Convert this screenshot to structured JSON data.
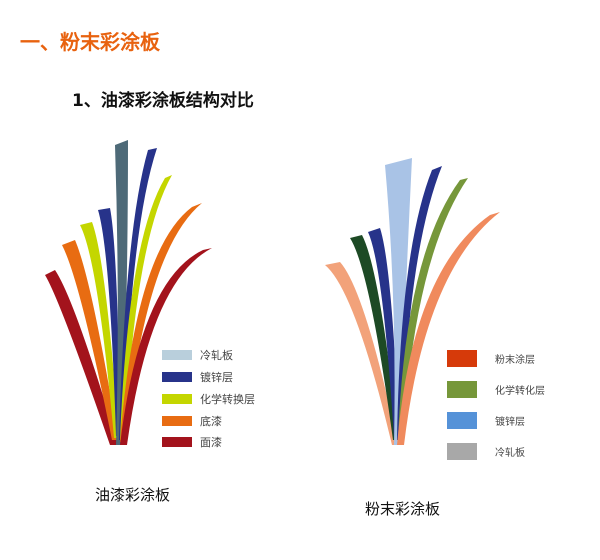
{
  "heading": "一、粉末彩涂板",
  "subheading": "1、油漆彩涂板结构对比",
  "left_figure": {
    "caption": "油漆彩涂板",
    "legend": [
      {
        "label": "冷轧板",
        "color": "#b9cfdc"
      },
      {
        "label": "镀锌层",
        "color": "#27338a"
      },
      {
        "label": "化学转换层",
        "color": "#c4d600"
      },
      {
        "label": "底漆",
        "color": "#e86c12"
      },
      {
        "label": "面漆",
        "color": "#a3131c"
      }
    ]
  },
  "right_figure": {
    "caption": "粉末彩涂板",
    "legend": [
      {
        "label": "粉末涂层",
        "color": "#d63a0a"
      },
      {
        "label": "化学转化层",
        "color": "#76973a"
      },
      {
        "label": "镀锌层",
        "color": "#5592d8"
      },
      {
        "label": "冷轧板",
        "color": "#a8a8a8"
      }
    ]
  },
  "colors": {
    "heading": "#e8620f"
  }
}
